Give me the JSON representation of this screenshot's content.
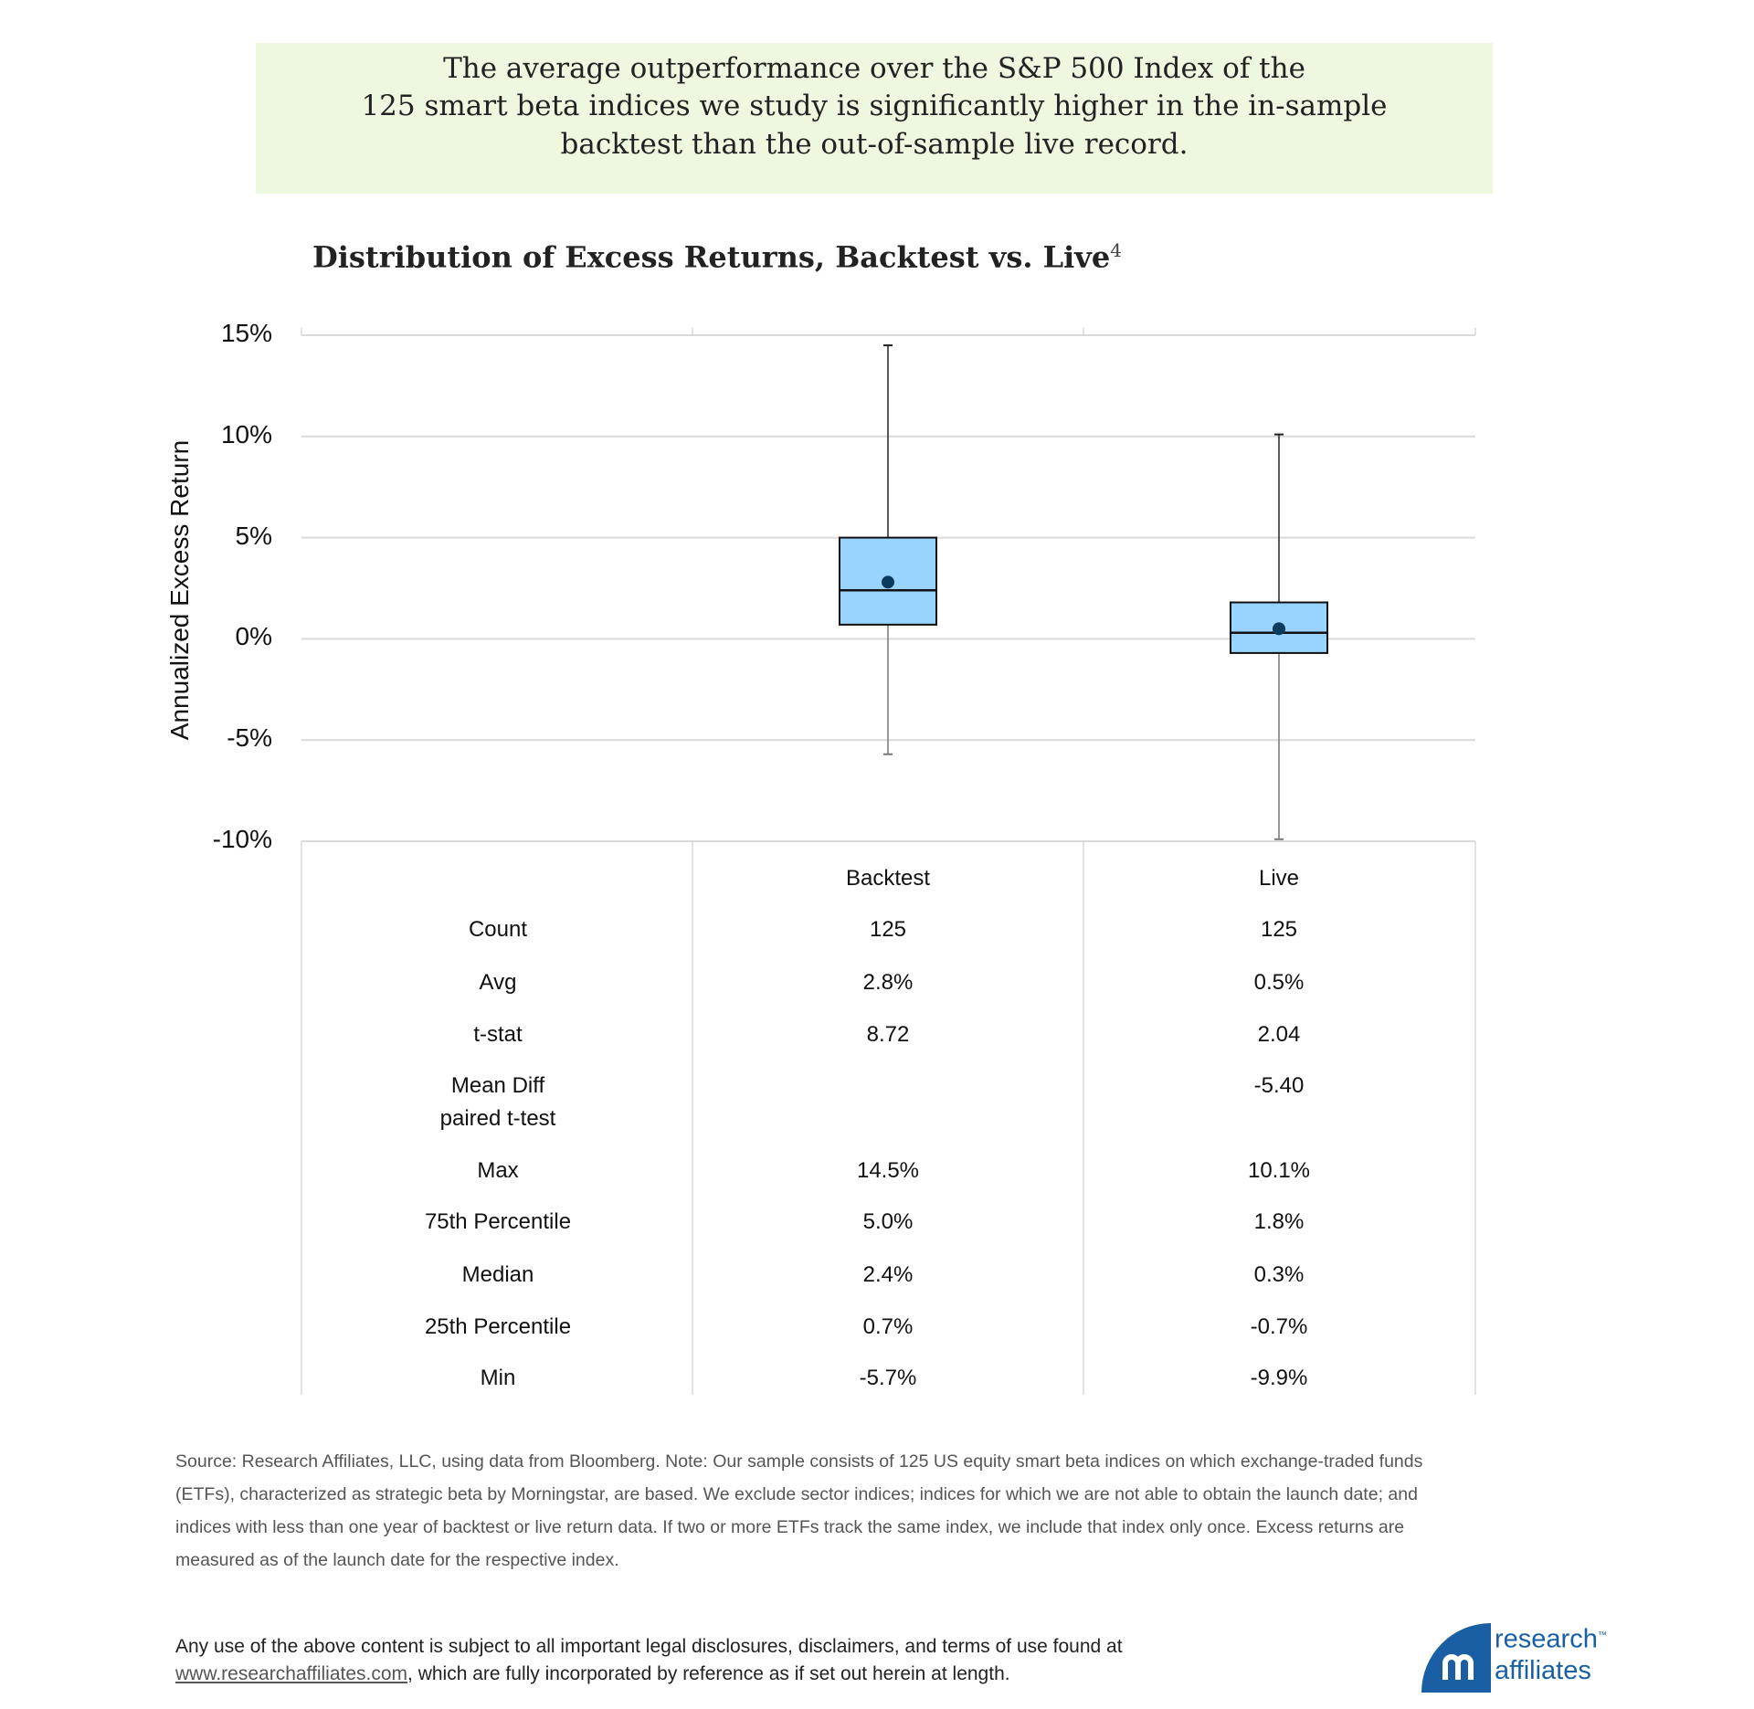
{
  "banner": {
    "lines": [
      "The average outperformance over the S&P 500 Index of the",
      "125 smart beta indices we study is significantly higher in the in-sample",
      "backtest than the out-of-sample live record."
    ]
  },
  "chart_data": {
    "type": "box",
    "title": "Distribution of Excess Returns, Backtest vs. Live",
    "title_footnote": "4",
    "ylabel": "Annualized Excess Return",
    "ylim": [
      -10,
      15
    ],
    "yticks": [
      "15%",
      "10%",
      "5%",
      "0%",
      "-5%",
      "-10%"
    ],
    "ytick_values": [
      15,
      10,
      5,
      0,
      -5,
      -10
    ],
    "grid": true,
    "categories": [
      "Backtest",
      "Live"
    ],
    "series": [
      {
        "name": "Backtest",
        "min": -5.7,
        "q1": 0.7,
        "median": 2.4,
        "q3": 5.0,
        "max": 14.5,
        "mean": 2.8
      },
      {
        "name": "Live",
        "min": -9.9,
        "q1": -0.7,
        "median": 0.3,
        "q3": 1.8,
        "max": 10.1,
        "mean": 0.5
      }
    ],
    "colors": {
      "box": "#99d3ff",
      "mean": "#0a3a5c",
      "grid": "#d9d9d9"
    }
  },
  "table": {
    "headers": [
      "",
      "Backtest",
      "Live"
    ],
    "rows": [
      {
        "label": "Count",
        "backtest": "125",
        "live": "125"
      },
      {
        "label": "Avg",
        "backtest": "2.8%",
        "live": "0.5%"
      },
      {
        "label": "t-stat",
        "backtest": "8.72",
        "live": "2.04"
      },
      {
        "label": "Mean Diff\npaired t-test",
        "backtest": "",
        "live": "-5.40"
      },
      {
        "label": "Max",
        "backtest": "14.5%",
        "live": "10.1%"
      },
      {
        "label": "75th Percentile",
        "backtest": "5.0%",
        "live": "1.8%"
      },
      {
        "label": "Median",
        "backtest": "2.4%",
        "live": "0.3%"
      },
      {
        "label": "25th Percentile",
        "backtest": "0.7%",
        "live": "-0.7%"
      },
      {
        "label": "Min",
        "backtest": "-5.7%",
        "live": "-9.9%"
      }
    ]
  },
  "footnote": {
    "lines": [
      "Source: Research Affiliates, LLC, using data from Bloomberg. Note: Our sample consists of 125 US equity smart beta indices on which exchange-traded funds",
      "(ETFs), characterized as strategic beta by Morningstar, are based. We exclude sector indices; indices for which we are not able to obtain the launch date; and",
      "indices with less than one year of backtest or live return data. If two or more ETFs track the same index, we include that index only once. Excess returns are",
      "measured as of the launch date for the respective index."
    ]
  },
  "disclaimer": {
    "line1": "Any use of the above content is subject to all important legal disclosures, disclaimers, and terms of use found at",
    "link": "www.researchaffiliates.com",
    "line2_rest": ",  which are fully incorporated by reference as if set out herein at length."
  },
  "logo": {
    "line1": "research",
    "line2": "affiliates",
    "tm": "™",
    "color": "#1a5fa3"
  }
}
